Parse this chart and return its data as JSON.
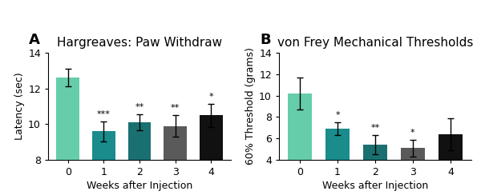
{
  "panel_a": {
    "title": "Hargreaves: Paw Withdraw",
    "ylabel": "Latency (sec)",
    "xlabel": "Weeks after Injection",
    "categories": [
      0,
      1,
      2,
      3,
      4
    ],
    "values": [
      12.6,
      9.6,
      10.1,
      9.9,
      10.5
    ],
    "errors": [
      0.5,
      0.55,
      0.45,
      0.6,
      0.65
    ],
    "colors": [
      "#66CDAA",
      "#1A8C8C",
      "#1A7070",
      "#5A5A5A",
      "#111111"
    ],
    "sig_labels": [
      "",
      "***",
      "**",
      "**",
      "*"
    ],
    "ylim": [
      8,
      14
    ],
    "yticks": [
      8,
      10,
      12,
      14
    ]
  },
  "panel_b": {
    "title": "von Frey Mechanical Thresholds",
    "ylabel": "60% Threshold (grams)",
    "xlabel": "Weeks after Injection",
    "categories": [
      0,
      1,
      2,
      3,
      4
    ],
    "values": [
      10.2,
      6.9,
      5.4,
      5.1,
      6.4
    ],
    "errors": [
      1.5,
      0.6,
      0.9,
      0.8,
      1.5
    ],
    "colors": [
      "#66CDAA",
      "#1A8C8C",
      "#1A7070",
      "#5A5A5A",
      "#111111"
    ],
    "sig_labels": [
      "",
      "*",
      "**",
      "*",
      ""
    ],
    "ylim": [
      4,
      14
    ],
    "yticks": [
      4,
      6,
      8,
      10,
      12,
      14
    ]
  },
  "panel_labels": [
    "A",
    "B"
  ],
  "background_color": "#ffffff",
  "title_fontsize": 11,
  "label_fontsize": 8,
  "tick_fontsize": 9,
  "panel_label_fontsize": 13
}
